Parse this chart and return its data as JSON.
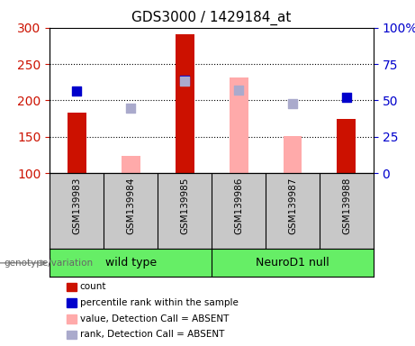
{
  "title": "GDS3000 / 1429184_at",
  "samples": [
    "GSM139983",
    "GSM139984",
    "GSM139985",
    "GSM139986",
    "GSM139987",
    "GSM139988"
  ],
  "group_labels": [
    "wild type",
    "NeuroD1 null"
  ],
  "bar_bottom": 100,
  "ylim_left": [
    100,
    300
  ],
  "ylim_right": [
    0,
    100
  ],
  "yticks_left": [
    100,
    150,
    200,
    250,
    300
  ],
  "yticks_right": [
    0,
    25,
    50,
    75,
    100
  ],
  "count_color": "#cc1100",
  "absent_value_color": "#ffaaaa",
  "percentile_color": "#0000cc",
  "absent_rank_color": "#aaaacc",
  "count_values": [
    183,
    null,
    291,
    null,
    null,
    175
  ],
  "absent_value_values": [
    null,
    123,
    null,
    231,
    151,
    null
  ],
  "percentile_values": [
    213,
    null,
    228,
    null,
    null,
    204
  ],
  "absent_rank_values": [
    null,
    189,
    226,
    214,
    196,
    null
  ],
  "bar_width": 0.35,
  "dot_size": 45,
  "background_label": "#c8c8c8",
  "background_group": "#66ee66",
  "legend_labels": [
    "count",
    "percentile rank within the sample",
    "value, Detection Call = ABSENT",
    "rank, Detection Call = ABSENT"
  ]
}
